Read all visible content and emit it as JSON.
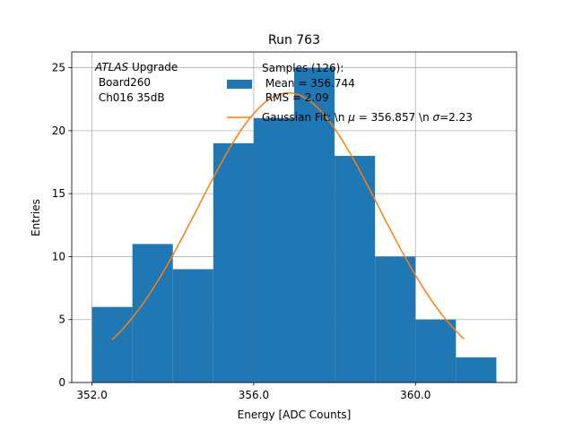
{
  "chart_data": {
    "type": "bar",
    "title": "Run 763",
    "xlabel": "Energy [ADC Counts]",
    "ylabel": "Entries",
    "xlim": [
      351.5,
      362.5
    ],
    "ylim": [
      0,
      26.25
    ],
    "grid": true,
    "x_ticks": [
      352.0,
      356.0,
      360.0
    ],
    "x_tick_labels": [
      "352.0",
      "356.0",
      "360.0"
    ],
    "y_ticks": [
      0,
      5,
      10,
      15,
      20,
      25
    ],
    "y_tick_labels": [
      "0",
      "5",
      "10",
      "15",
      "20",
      "25"
    ],
    "bin_edges": [
      352,
      353,
      354,
      355,
      356,
      357,
      358,
      359,
      360,
      361,
      362
    ],
    "values": [
      6,
      11,
      9,
      19,
      21,
      25,
      18,
      10,
      5,
      2
    ],
    "histogram_color": "#1f77b4",
    "fit": {
      "mu": 356.857,
      "sigma": 2.23,
      "amplitude": 23.0,
      "x_range": [
        352.5,
        361.2
      ],
      "color": "#ff7f0e"
    },
    "legend": {
      "placement": "upper-center",
      "samples_title": "Samples (126):",
      "samples_mean": " Mean = 356.744",
      "samples_rms": " RMS = 2.09",
      "fit_prefix": "Gaussian Fit: \\n ",
      "fit_mu_symbol": "μ",
      "fit_mu_value": " = 356.857 \\n ",
      "fit_sigma_symbol": "σ",
      "fit_sigma_value": "=2.23"
    },
    "annotation": {
      "experiment": "ATLAS",
      "experiment_suffix": " Upgrade",
      "board": " Board260",
      "channel": " Ch016 35dB"
    }
  }
}
